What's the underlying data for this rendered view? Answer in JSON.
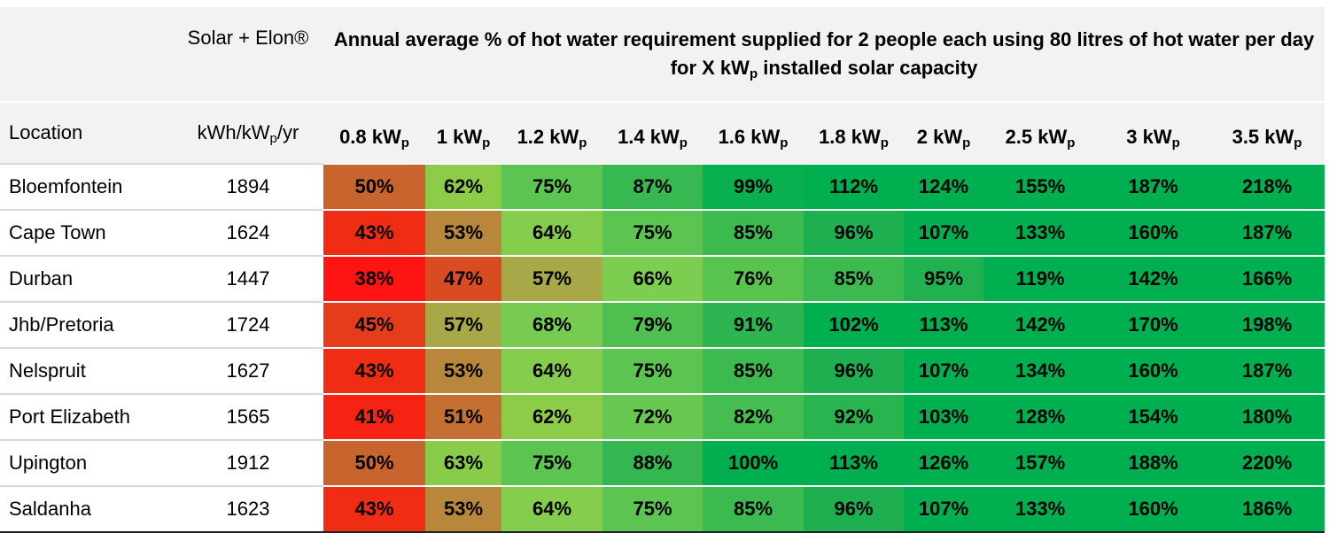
{
  "header": {
    "brand": "Solar + Elon®",
    "title": {
      "before": "Annual average % of hot water requirement supplied for 2 people each using 80 litres of hot water per day for X kW",
      "sub": "p",
      "after": " installed solar capacity"
    },
    "location": "Location",
    "yield": {
      "before": "kWh/kW",
      "sub": "p",
      "after": "/yr"
    },
    "columns": [
      {
        "main": "0.8 kW",
        "sub": "p"
      },
      {
        "main": "1 kW",
        "sub": "p"
      },
      {
        "main": "1.2 kW",
        "sub": "p"
      },
      {
        "main": "1.4 kW",
        "sub": "p"
      },
      {
        "main": "1.6 kW",
        "sub": "p"
      },
      {
        "main": "1.8 kW",
        "sub": "p"
      },
      {
        "main": "2 kW",
        "sub": "p"
      },
      {
        "main": "2.5 kW",
        "sub": "p"
      },
      {
        "main": "3 kW",
        "sub": "p"
      },
      {
        "main": "3.5 kW",
        "sub": "p"
      }
    ]
  },
  "table": {
    "rows": [
      {
        "location": "Bloemfontein",
        "yield": 1894,
        "values": [
          "50%",
          "62%",
          "75%",
          "87%",
          "99%",
          "112%",
          "124%",
          "155%",
          "187%",
          "218%"
        ]
      },
      {
        "location": "Cape Town",
        "yield": 1624,
        "values": [
          "43%",
          "53%",
          "64%",
          "75%",
          "85%",
          "96%",
          "107%",
          "133%",
          "160%",
          "187%"
        ]
      },
      {
        "location": "Durban",
        "yield": 1447,
        "values": [
          "38%",
          "47%",
          "57%",
          "66%",
          "76%",
          "85%",
          "95%",
          "119%",
          "142%",
          "166%"
        ]
      },
      {
        "location": "Jhb/Pretoria",
        "yield": 1724,
        "values": [
          "45%",
          "57%",
          "68%",
          "79%",
          "91%",
          "102%",
          "113%",
          "142%",
          "170%",
          "198%"
        ]
      },
      {
        "location": "Nelspruit",
        "yield": 1627,
        "values": [
          "43%",
          "53%",
          "64%",
          "75%",
          "85%",
          "96%",
          "107%",
          "134%",
          "160%",
          "187%"
        ]
      },
      {
        "location": "Port Elizabeth",
        "yield": 1565,
        "values": [
          "41%",
          "51%",
          "62%",
          "72%",
          "82%",
          "92%",
          "103%",
          "128%",
          "154%",
          "180%"
        ]
      },
      {
        "location": "Upington",
        "yield": 1912,
        "values": [
          "50%",
          "63%",
          "75%",
          "88%",
          "100%",
          "113%",
          "126%",
          "157%",
          "188%",
          "220%"
        ]
      },
      {
        "location": "Saldanha",
        "yield": 1623,
        "values": [
          "43%",
          "53%",
          "64%",
          "75%",
          "85%",
          "96%",
          "107%",
          "133%",
          "160%",
          "186%"
        ]
      }
    ]
  }
}
